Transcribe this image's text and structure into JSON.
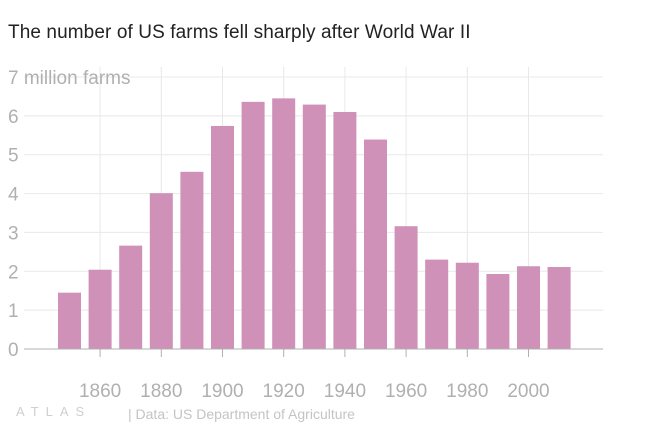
{
  "title": "The number of US farms fell sharply after World War II",
  "footer": {
    "logo": "ATLAS",
    "source": "| Data: US Department of Agriculture"
  },
  "colors": {
    "bar": "#cf91b7",
    "grid": "#e8e8e8",
    "axis": "#b0b0b0",
    "tick_text": "#b0b0b0"
  },
  "chart_data": {
    "type": "bar",
    "title": "The number of US farms fell sharply after World War II",
    "ylabel": "",
    "xlabel": "",
    "ylim": [
      0,
      7
    ],
    "y_ticks": [
      {
        "value": 0,
        "label": "0"
      },
      {
        "value": 1,
        "label": "1"
      },
      {
        "value": 2,
        "label": "2"
      },
      {
        "value": 3,
        "label": "3"
      },
      {
        "value": 4,
        "label": "4"
      },
      {
        "value": 5,
        "label": "5"
      },
      {
        "value": 6,
        "label": "6"
      },
      {
        "value": 7,
        "label": "7 million farms"
      }
    ],
    "x_ticks": [
      1860,
      1880,
      1900,
      1920,
      1940,
      1960,
      1980,
      2000
    ],
    "grid": true,
    "categories": [
      1850,
      1860,
      1870,
      1880,
      1890,
      1900,
      1910,
      1920,
      1930,
      1940,
      1950,
      1960,
      1970,
      1980,
      1990,
      2000,
      2010
    ],
    "values": [
      1.45,
      2.04,
      2.66,
      4.01,
      4.56,
      5.74,
      6.36,
      6.45,
      6.29,
      6.1,
      5.39,
      3.16,
      2.3,
      2.22,
      1.93,
      2.13,
      2.11
    ]
  }
}
